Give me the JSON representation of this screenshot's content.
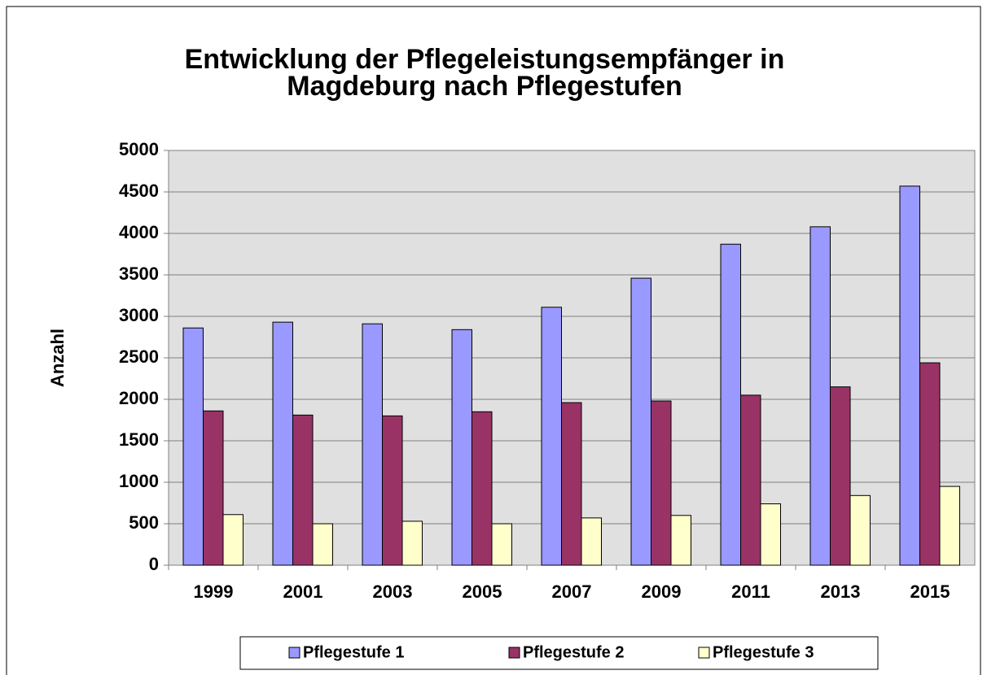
{
  "chart_data": {
    "type": "bar",
    "title": "Entwicklung der Pflegeleistungsempfänger in",
    "subtitle": "Magdeburg nach Pflegestufen",
    "y_label": "Anzahl",
    "categories": [
      "1999",
      "2001",
      "2003",
      "2005",
      "2007",
      "2009",
      "2011",
      "2013",
      "2015"
    ],
    "series": [
      {
        "name": "Pflegestufe 1",
        "color": "#9999ff",
        "values": [
          2860,
          2930,
          2910,
          2840,
          3110,
          3460,
          3870,
          4080,
          4570
        ]
      },
      {
        "name": "Pflegestufe 2",
        "color": "#993366",
        "values": [
          1860,
          1810,
          1800,
          1850,
          1960,
          1980,
          2050,
          2150,
          2440
        ]
      },
      {
        "name": "Pflegestufe 3",
        "color": "#ffffcc",
        "values": [
          610,
          500,
          530,
          500,
          570,
          600,
          740,
          840,
          950
        ]
      }
    ],
    "ylim": [
      0,
      5000
    ],
    "yticks": [
      0,
      500,
      1000,
      1500,
      2000,
      2500,
      3000,
      3500,
      4000,
      4500,
      5000
    ],
    "grid": true,
    "legend": "bottom"
  }
}
